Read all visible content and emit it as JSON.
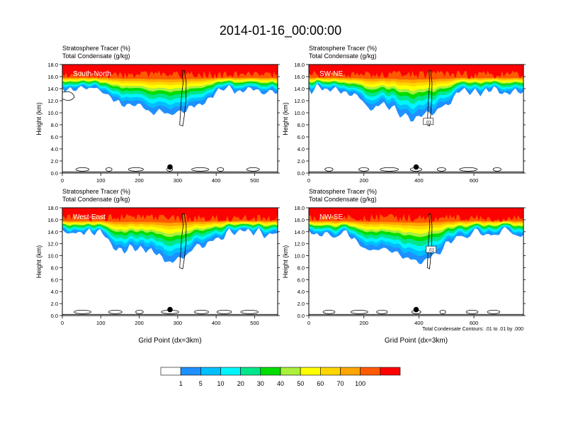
{
  "title": "2014-01-16_00:00:00",
  "colorbar": {
    "colors": [
      "#ffffff",
      "#1e90ff",
      "#00bfff",
      "#00f5ff",
      "#00e68a",
      "#00dd00",
      "#aaf03c",
      "#ffff00",
      "#ffd700",
      "#ffa500",
      "#ff5a00",
      "#ff0000"
    ],
    "labels": [
      "1",
      "5",
      "10",
      "20",
      "30",
      "40",
      "50",
      "60",
      "70",
      "100"
    ]
  },
  "chart_data": [
    {
      "type": "heatmap",
      "name": "South-North",
      "title_lines": [
        "Stratosphere Tracer   (%)",
        "Total Condensate   (g/kg)"
      ],
      "ylabel": "Height (km)",
      "xlabel": "",
      "xlim": [
        0,
        560
      ],
      "ylim": [
        0,
        18
      ],
      "xticks": [
        0,
        100,
        200,
        300,
        400,
        500
      ],
      "yticks": [
        "0.0",
        "2.0",
        "4.0",
        "6.0",
        "8.0",
        "10.0",
        "12.0",
        "14.0",
        "16.0",
        "18.0"
      ],
      "marker_x": 280,
      "contour_label": "",
      "footnote": ""
    },
    {
      "type": "heatmap",
      "name": "SW-NE",
      "title_lines": [
        "Stratosphere Tracer   (%)",
        "Total Condensate   (g/kg)"
      ],
      "ylabel": "Height (km)",
      "xlabel": "",
      "xlim": [
        0,
        780
      ],
      "ylim": [
        0,
        18
      ],
      "xticks": [
        0,
        200,
        400,
        600
      ],
      "yticks": [
        "0.0",
        "2.0",
        "4.0",
        "6.0",
        "8.0",
        "10.0",
        "12.0",
        "14.0",
        "16.0",
        "18.0"
      ],
      "marker_x": 390,
      "contour_label": ".01",
      "footnote": ""
    },
    {
      "type": "heatmap",
      "name": "West-East",
      "title_lines": [
        "Stratosphere Tracer   (%)",
        "Total Condensate   (g/kg)"
      ],
      "ylabel": "Height (km)",
      "xlabel": "Grid Point (dx=3km)",
      "xlim": [
        0,
        560
      ],
      "ylim": [
        0,
        18
      ],
      "xticks": [
        0,
        100,
        200,
        300,
        400,
        500
      ],
      "yticks": [
        "0.0",
        "2.0",
        "4.0",
        "6.0",
        "8.0",
        "10.0",
        "12.0",
        "14.0",
        "16.0",
        "18.0"
      ],
      "marker_x": 280,
      "contour_label": "",
      "footnote": ""
    },
    {
      "type": "heatmap",
      "name": "NW-SE",
      "title_lines": [
        "Stratosphere Tracer   (%)",
        "Total Condensate   (g/kg)"
      ],
      "ylabel": "Height (km)",
      "xlabel": "Grid Point (dx=3km)",
      "xlim": [
        0,
        780
      ],
      "ylim": [
        0,
        18
      ],
      "xticks": [
        0,
        200,
        400,
        600
      ],
      "yticks": [
        "0.0",
        "2.0",
        "4.0",
        "6.0",
        "8.0",
        "10.0",
        "12.0",
        "14.0",
        "16.0",
        "18.0"
      ],
      "marker_x": 390,
      "contour_label": ".01",
      "footnote": "Total Condensate Contours: .01 to .01 by .000"
    }
  ]
}
